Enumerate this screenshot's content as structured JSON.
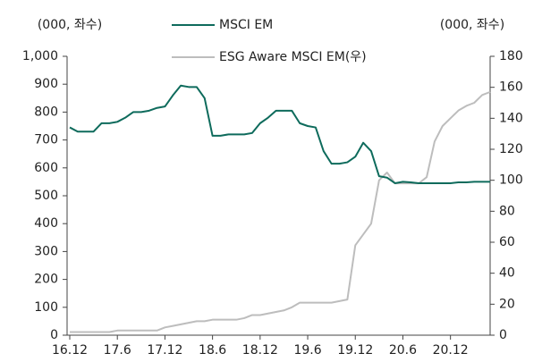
{
  "chart_data": {
    "type": "line",
    "y_unit_label": "(000, 좌수)",
    "y2_unit_label": "(000, 좌수)",
    "categories": [
      "16.12",
      null,
      null,
      null,
      null,
      null,
      "17.6",
      null,
      null,
      null,
      null,
      null,
      "17.12",
      null,
      null,
      null,
      null,
      null,
      "18.6",
      null,
      null,
      null,
      null,
      null,
      "18.12",
      null,
      null,
      null,
      null,
      null,
      "19.6",
      null,
      null,
      null,
      null,
      null,
      "19.12",
      null,
      null,
      null,
      null,
      null,
      "20.6",
      null,
      null,
      null,
      null,
      null,
      "20.12",
      null,
      null,
      null,
      null,
      null
    ],
    "series": [
      {
        "name": "MSCI EM",
        "color": "#0e6b5c",
        "axis": "y",
        "values": [
          745,
          730,
          730,
          730,
          760,
          760,
          765,
          780,
          800,
          800,
          805,
          815,
          820,
          860,
          895,
          890,
          890,
          850,
          715,
          715,
          720,
          720,
          720,
          725,
          760,
          780,
          805,
          805,
          805,
          760,
          750,
          745,
          660,
          615,
          615,
          620,
          640,
          690,
          660,
          570,
          565,
          545,
          550,
          548,
          545,
          545,
          545,
          545,
          545,
          548,
          548,
          550,
          550,
          550
        ]
      },
      {
        "name": "ESG Aware MSCI EM(우)",
        "color": "#bdbdbd",
        "axis": "y2",
        "values": [
          2,
          2,
          2,
          2,
          2,
          2,
          3,
          3,
          3,
          3,
          3,
          3,
          5,
          6,
          7,
          8,
          9,
          9,
          10,
          10,
          10,
          10,
          11,
          13,
          13,
          14,
          15,
          16,
          18,
          21,
          21,
          21,
          21,
          21,
          22,
          23,
          58,
          65,
          72,
          100,
          105,
          98,
          98,
          98,
          98,
          102,
          125,
          135,
          140,
          145,
          148,
          150,
          155,
          157
        ]
      }
    ],
    "ylim": [
      0,
      1000
    ],
    "yticks": [
      0,
      100,
      200,
      300,
      400,
      500,
      600,
      700,
      800,
      900,
      {
        "value": 1000,
        "label": "1,000"
      }
    ],
    "y2lim": [
      0,
      180
    ],
    "y2ticks": [
      0,
      20,
      40,
      60,
      80,
      100,
      120,
      140,
      160,
      180
    ]
  }
}
